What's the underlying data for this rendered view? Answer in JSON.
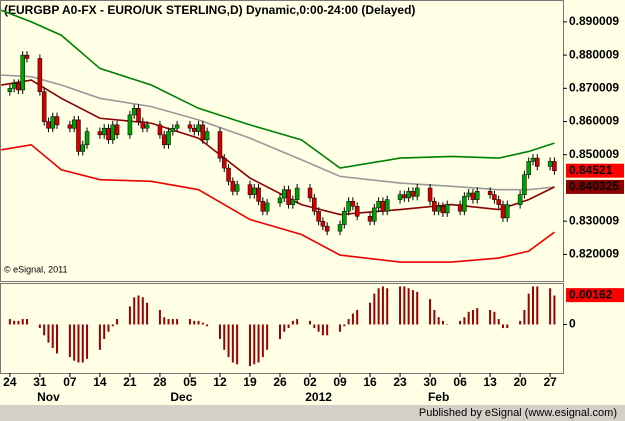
{
  "chart_data": [
    {
      "type": "candlestick",
      "title": "(EURGBP A0-FX - EURO/UK STERLING,D) Dynamic,0:00-24:00 (Delayed)",
      "copyright": "© eSignal, 2011",
      "x": [
        0,
        1,
        2,
        3,
        4,
        7,
        8,
        9,
        10,
        11,
        14,
        15,
        16,
        17,
        18,
        21,
        22,
        23,
        24,
        25,
        28,
        29,
        30,
        31,
        32,
        35,
        36,
        37,
        38,
        39,
        42,
        43,
        44,
        45,
        46,
        49,
        50,
        51,
        52,
        53,
        56,
        57,
        58,
        59,
        60,
        63,
        64,
        65,
        66,
        67,
        70,
        71,
        72,
        73,
        74,
        77,
        78,
        79,
        80,
        81,
        84,
        85,
        86,
        87,
        88,
        91,
        92,
        93,
        94,
        95,
        98,
        99,
        100,
        101,
        102,
        105,
        106,
        107,
        108,
        109,
        112,
        113,
        114,
        115,
        116,
        119,
        120,
        121,
        122,
        123,
        126,
        127
      ],
      "ohlc": [
        [
          0.869,
          0.8712,
          0.8678,
          0.87
        ],
        [
          0.87,
          0.8727,
          0.8688,
          0.8715
        ],
        [
          0.8715,
          0.8727,
          0.8683,
          0.8695
        ],
        [
          0.8695,
          0.8812,
          0.8683,
          0.88
        ],
        [
          0.88,
          0.8812,
          0.8778,
          0.879
        ],
        [
          0.879,
          0.8802,
          0.8678,
          0.869
        ],
        [
          0.869,
          0.8702,
          0.8588,
          0.86
        ],
        [
          0.86,
          0.8612,
          0.8568,
          0.858
        ],
        [
          0.858,
          0.8627,
          0.8568,
          0.8615
        ],
        [
          0.8615,
          0.8627,
          0.8578,
          0.859
        ],
        [
          0.859,
          0.8602,
          0.8568,
          0.858
        ],
        [
          0.858,
          0.8617,
          0.8568,
          0.8605
        ],
        [
          0.8605,
          0.8617,
          0.8498,
          0.851
        ],
        [
          0.851,
          0.8542,
          0.8498,
          0.853
        ],
        [
          0.853,
          0.8582,
          0.8518,
          0.857
        ],
        [
          0.857,
          0.8582,
          0.8548,
          0.856
        ],
        [
          0.856,
          0.8592,
          0.8548,
          0.858
        ],
        [
          0.858,
          0.8592,
          0.8533,
          0.8545
        ],
        [
          0.8545,
          0.8602,
          0.8533,
          0.859
        ],
        [
          0.859,
          0.8602,
          0.8548,
          0.856
        ],
        [
          0.856,
          0.8632,
          0.8548,
          0.862
        ],
        [
          0.862,
          0.8652,
          0.8608,
          0.864
        ],
        [
          0.864,
          0.8652,
          0.8588,
          0.86
        ],
        [
          0.86,
          0.8612,
          0.8568,
          0.858
        ],
        [
          0.858,
          0.8602,
          0.8568,
          0.859
        ],
        [
          0.859,
          0.8602,
          0.8548,
          0.856
        ],
        [
          0.856,
          0.8572,
          0.8518,
          0.853
        ],
        [
          0.853,
          0.8582,
          0.8518,
          0.857
        ],
        [
          0.857,
          0.8592,
          0.8558,
          0.858
        ],
        [
          0.858,
          0.8602,
          0.8568,
          0.859
        ],
        [
          0.859,
          0.8602,
          0.8568,
          0.858
        ],
        [
          0.858,
          0.8592,
          0.8558,
          0.857
        ],
        [
          0.857,
          0.8602,
          0.8558,
          0.859
        ],
        [
          0.859,
          0.8602,
          0.8533,
          0.8545
        ],
        [
          0.8545,
          0.8582,
          0.8533,
          0.857
        ],
        [
          0.857,
          0.8582,
          0.8478,
          0.849
        ],
        [
          0.849,
          0.8502,
          0.8448,
          0.846
        ],
        [
          0.846,
          0.8472,
          0.8408,
          0.842
        ],
        [
          0.842,
          0.8432,
          0.8378,
          0.839
        ],
        [
          0.839,
          0.8422,
          0.8378,
          0.841
        ],
        [
          0.841,
          0.8422,
          0.8368,
          0.838
        ],
        [
          0.838,
          0.8412,
          0.8368,
          0.84
        ],
        [
          0.84,
          0.8412,
          0.8348,
          0.836
        ],
        [
          0.836,
          0.8372,
          0.8318,
          0.833
        ],
        [
          0.833,
          0.8367,
          0.8318,
          0.8355
        ],
        [
          0.8355,
          0.8382,
          0.8343,
          0.837
        ],
        [
          0.837,
          0.8407,
          0.8358,
          0.8395
        ],
        [
          0.8395,
          0.8407,
          0.8338,
          0.835
        ],
        [
          0.835,
          0.8377,
          0.8338,
          0.8365
        ],
        [
          0.8365,
          0.8412,
          0.8353,
          0.84
        ],
        [
          0.84,
          0.8412,
          0.8358,
          0.837
        ],
        [
          0.837,
          0.8382,
          0.8318,
          0.833
        ],
        [
          0.833,
          0.8342,
          0.8288,
          0.83
        ],
        [
          0.83,
          0.8312,
          0.8273,
          0.8285
        ],
        [
          0.8285,
          0.8297,
          0.8258,
          0.827
        ],
        [
          0.827,
          0.8302,
          0.8258,
          0.829
        ],
        [
          0.829,
          0.8342,
          0.8278,
          0.833
        ],
        [
          0.833,
          0.8372,
          0.8318,
          0.836
        ],
        [
          0.836,
          0.8372,
          0.8333,
          0.8345
        ],
        [
          0.8345,
          0.8357,
          0.8303,
          0.8315
        ],
        [
          0.8315,
          0.8327,
          0.8288,
          0.83
        ],
        [
          0.83,
          0.8352,
          0.8288,
          0.834
        ],
        [
          0.834,
          0.8372,
          0.8328,
          0.836
        ],
        [
          0.836,
          0.8372,
          0.8318,
          0.833
        ],
        [
          0.833,
          0.8377,
          0.8318,
          0.8365
        ],
        [
          0.8365,
          0.8392,
          0.8353,
          0.838
        ],
        [
          0.838,
          0.8392,
          0.8358,
          0.837
        ],
        [
          0.837,
          0.8402,
          0.8358,
          0.839
        ],
        [
          0.839,
          0.8402,
          0.8363,
          0.8375
        ],
        [
          0.8375,
          0.8412,
          0.8363,
          0.84
        ],
        [
          0.84,
          0.8412,
          0.8348,
          0.836
        ],
        [
          0.836,
          0.8372,
          0.8318,
          0.833
        ],
        [
          0.833,
          0.8357,
          0.8318,
          0.8345
        ],
        [
          0.8345,
          0.8357,
          0.8313,
          0.8325
        ],
        [
          0.8325,
          0.8362,
          0.8313,
          0.835
        ],
        [
          0.835,
          0.8362,
          0.8318,
          0.833
        ],
        [
          0.833,
          0.8387,
          0.8318,
          0.8375
        ],
        [
          0.8375,
          0.8397,
          0.8363,
          0.8385
        ],
        [
          0.8385,
          0.8397,
          0.8353,
          0.8365
        ],
        [
          0.8365,
          0.8402,
          0.8353,
          0.839
        ],
        [
          0.839,
          0.8402,
          0.8368,
          0.838
        ],
        [
          0.838,
          0.8392,
          0.8353,
          0.8365
        ],
        [
          0.8365,
          0.8377,
          0.8338,
          0.835
        ],
        [
          0.835,
          0.8362,
          0.8298,
          0.831
        ],
        [
          0.831,
          0.8362,
          0.8298,
          0.835
        ],
        [
          0.835,
          0.8392,
          0.8338,
          0.838
        ],
        [
          0.838,
          0.8452,
          0.8368,
          0.844
        ],
        [
          0.844,
          0.8492,
          0.8428,
          0.848
        ],
        [
          0.848,
          0.8502,
          0.8468,
          0.849
        ],
        [
          0.849,
          0.8502,
          0.8453,
          0.8465
        ],
        [
          0.8465,
          0.8492,
          0.8453,
          0.848
        ],
        [
          0.848,
          0.8492,
          0.844,
          0.8452
        ]
      ],
      "up_color": "#00a000",
      "down_color": "#d00000",
      "lines": [
        {
          "color": "#008000",
          "x": [
            -2,
            5,
            12,
            21,
            33,
            44,
            56,
            68,
            77,
            91,
            103,
            114,
            121,
            127
          ],
          "values": [
            0.8935,
            0.89,
            0.886,
            0.876,
            0.871,
            0.864,
            0.859,
            0.8545,
            0.846,
            0.849,
            0.8495,
            0.849,
            0.851,
            0.8535
          ]
        },
        {
          "color": "#999999",
          "x": [
            -2,
            5,
            12,
            21,
            33,
            44,
            56,
            68,
            77,
            91,
            103,
            114,
            121,
            127
          ],
          "values": [
            0.874,
            0.8735,
            0.871,
            0.867,
            0.8645,
            0.8605,
            0.855,
            0.8485,
            0.8435,
            0.8415,
            0.8405,
            0.8395,
            0.8395,
            0.8403
          ]
        },
        {
          "color": "#8b0000",
          "x": [
            -2,
            5,
            12,
            21,
            33,
            44,
            56,
            68,
            77,
            91,
            103,
            114,
            121,
            127
          ],
          "values": [
            0.871,
            0.8725,
            0.867,
            0.861,
            0.8595,
            0.855,
            0.843,
            0.835,
            0.832,
            0.8335,
            0.835,
            0.8335,
            0.8365,
            0.8403
          ]
        },
        {
          "color": "#ee0000",
          "x": [
            -2,
            5,
            12,
            21,
            33,
            44,
            56,
            68,
            77,
            91,
            103,
            114,
            121,
            127
          ],
          "values": [
            0.8515,
            0.853,
            0.8455,
            0.8425,
            0.842,
            0.8395,
            0.8305,
            0.826,
            0.8198,
            0.8177,
            0.8177,
            0.8189,
            0.821,
            0.8267
          ]
        }
      ],
      "price_labels": [
        {
          "value": 0.84521,
          "color": "#ff0000"
        },
        {
          "value": 0.840325,
          "color": "#8b0000"
        }
      ],
      "ylim": [
        0.812,
        0.8966
      ],
      "yticks": [
        0.890009,
        0.880009,
        0.870009,
        0.860009,
        0.850009,
        0.830009,
        0.820009
      ],
      "xlim": [
        -2.3,
        129
      ],
      "xticks": [
        {
          "value": 0,
          "label": "24"
        },
        {
          "value": 7,
          "label": "31"
        },
        {
          "value": 14,
          "label": "07"
        },
        {
          "value": 21,
          "label": "14"
        },
        {
          "value": 28,
          "label": "21"
        },
        {
          "value": 35,
          "label": "28"
        },
        {
          "value": 42,
          "label": "05"
        },
        {
          "value": 49,
          "label": "12"
        },
        {
          "value": 56,
          "label": "19"
        },
        {
          "value": 63,
          "label": "26"
        },
        {
          "value": 70,
          "label": "02"
        },
        {
          "value": 77,
          "label": "09"
        },
        {
          "value": 84,
          "label": "16"
        },
        {
          "value": 91,
          "label": "23"
        },
        {
          "value": 98,
          "label": "30"
        },
        {
          "value": 105,
          "label": "06"
        },
        {
          "value": 112,
          "label": "13"
        },
        {
          "value": 119,
          "label": "20"
        },
        {
          "value": 126,
          "label": "27"
        }
      ],
      "month_labels": [
        {
          "value": 9,
          "label": "Nov"
        },
        {
          "value": 40,
          "label": "Dec"
        },
        {
          "value": 72,
          "label": "2012"
        },
        {
          "value": 100,
          "label": "Feb"
        }
      ]
    },
    {
      "type": "bar",
      "x": [
        0,
        1,
        2,
        3,
        4,
        7,
        8,
        9,
        10,
        11,
        14,
        15,
        16,
        17,
        18,
        21,
        22,
        23,
        24,
        25,
        28,
        29,
        30,
        31,
        32,
        35,
        36,
        37,
        38,
        39,
        42,
        43,
        44,
        45,
        46,
        49,
        50,
        51,
        52,
        53,
        56,
        57,
        58,
        59,
        60,
        63,
        64,
        65,
        66,
        67,
        70,
        71,
        72,
        73,
        74,
        77,
        78,
        79,
        80,
        81,
        84,
        85,
        86,
        87,
        88,
        91,
        92,
        93,
        94,
        95,
        98,
        99,
        100,
        101,
        102,
        105,
        106,
        107,
        108,
        109,
        112,
        113,
        114,
        115,
        116,
        119,
        120,
        121,
        122,
        123,
        126,
        127
      ],
      "values": [
        0.0003,
        0.0002,
        0.0002,
        0.0003,
        0.0003,
        -0.0002,
        -0.0006,
        -0.001,
        -0.0013,
        -0.0016,
        -0.0018,
        -0.002,
        -0.0021,
        -0.0021,
        -0.0019,
        -0.0014,
        -0.0008,
        -0.0004,
        -0.0001,
        0.0003,
        0.001,
        0.0015,
        0.0016,
        0.0015,
        0.0012,
        0.0008,
        0.0004,
        0.0003,
        0.0003,
        0.0003,
        0.0003,
        0.0002,
        0.0002,
        0.0001,
        -0.0001,
        -0.0008,
        -0.0014,
        -0.0018,
        -0.0021,
        -0.0022,
        -0.0023,
        -0.0022,
        -0.0021,
        -0.0018,
        -0.0014,
        -0.0008,
        -0.0004,
        -0.0002,
        0.0002,
        0.0003,
        0.0002,
        -0.0002,
        -0.0004,
        -0.0006,
        -0.0006,
        -0.0004,
        -0.0001,
        0.0003,
        0.0006,
        0.0008,
        0.0012,
        0.0017,
        0.002,
        0.0021,
        0.002,
        0.0021,
        0.0021,
        0.002,
        0.0019,
        0.0018,
        0.0014,
        0.0008,
        0.0004,
        0.0002,
        0,
        0.0002,
        0.0004,
        0.0007,
        0.0008,
        0.0009,
        0.0008,
        0.0007,
        0.0003,
        -0.0002,
        -0.0002,
        0.0002,
        0.0008,
        0.0017,
        0.0021,
        0.0021,
        0.002,
        0.0016
      ],
      "color": "#990000",
      "ylim": [
        -0.00268,
        0.00229
      ],
      "yticks": [
        0
      ],
      "xlim": [
        -2.3,
        129
      ],
      "price_labels": [
        {
          "value": 0.00162,
          "color": "#ff0000"
        }
      ]
    }
  ],
  "footer": "Published by eSignal (www.esignal.com)"
}
